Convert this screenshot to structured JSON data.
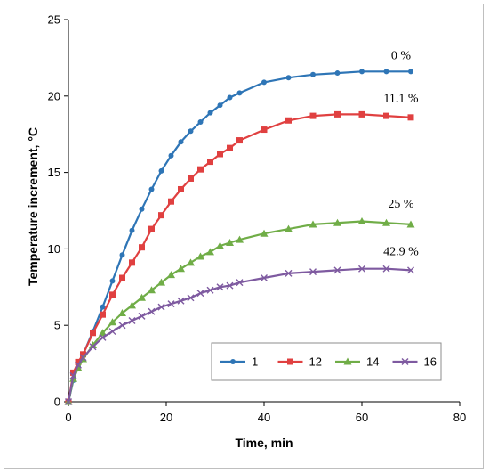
{
  "chart_data": {
    "type": "line",
    "xlabel": "Time, min",
    "ylabel": "Temperature increment, °C",
    "xlim": [
      0,
      80
    ],
    "ylim": [
      0,
      25
    ],
    "xticks": [
      "0",
      "20",
      "40",
      "60",
      "80"
    ],
    "yticks": [
      "0",
      "5",
      "10",
      "15",
      "20",
      "25"
    ],
    "grid": false,
    "legend_position": "bottom-right",
    "series": [
      {
        "name": "1",
        "color": "#2e75b6",
        "marker": "circle",
        "x": [
          0,
          1,
          2,
          3,
          5,
          7,
          9,
          11,
          13,
          15,
          17,
          19,
          21,
          23,
          25,
          27,
          29,
          31,
          33,
          35,
          40,
          45,
          50,
          55,
          60,
          65,
          70
        ],
        "y": [
          0,
          1.4,
          2.3,
          3.1,
          4.6,
          6.2,
          7.9,
          9.6,
          11.2,
          12.6,
          13.9,
          15.1,
          16.1,
          17.0,
          17.7,
          18.3,
          18.9,
          19.4,
          19.9,
          20.2,
          20.9,
          21.2,
          21.4,
          21.5,
          21.6,
          21.6,
          21.6
        ]
      },
      {
        "name": "12",
        "color": "#e04040",
        "marker": "square",
        "x": [
          0,
          1,
          2,
          3,
          5,
          7,
          9,
          11,
          13,
          15,
          17,
          19,
          21,
          23,
          25,
          27,
          29,
          31,
          33,
          35,
          40,
          45,
          50,
          55,
          60,
          65,
          70
        ],
        "y": [
          0,
          1.9,
          2.6,
          3.1,
          4.5,
          5.7,
          7.0,
          8.1,
          9.1,
          10.1,
          11.3,
          12.2,
          13.1,
          13.9,
          14.6,
          15.2,
          15.7,
          16.2,
          16.6,
          17.1,
          17.8,
          18.4,
          18.7,
          18.8,
          18.8,
          18.7,
          18.6
        ]
      },
      {
        "name": "14",
        "color": "#70ad47",
        "marker": "triangle",
        "x": [
          0,
          1,
          2,
          3,
          5,
          7,
          9,
          11,
          13,
          15,
          17,
          19,
          21,
          23,
          25,
          27,
          29,
          31,
          33,
          35,
          40,
          45,
          50,
          55,
          60,
          65,
          70
        ],
        "y": [
          0,
          1.5,
          2.2,
          2.8,
          3.7,
          4.5,
          5.2,
          5.8,
          6.3,
          6.8,
          7.3,
          7.8,
          8.3,
          8.7,
          9.1,
          9.5,
          9.8,
          10.2,
          10.4,
          10.6,
          11.0,
          11.3,
          11.6,
          11.7,
          11.8,
          11.7,
          11.6
        ]
      },
      {
        "name": "16",
        "color": "#7e5aa0",
        "marker": "x",
        "x": [
          0,
          1,
          2,
          3,
          5,
          7,
          9,
          11,
          13,
          15,
          17,
          19,
          21,
          23,
          25,
          27,
          29,
          31,
          33,
          35,
          40,
          45,
          50,
          55,
          60,
          65,
          70
        ],
        "y": [
          0,
          1.7,
          2.4,
          2.9,
          3.6,
          4.2,
          4.6,
          5.0,
          5.3,
          5.6,
          5.9,
          6.2,
          6.4,
          6.6,
          6.8,
          7.1,
          7.3,
          7.5,
          7.6,
          7.8,
          8.1,
          8.4,
          8.5,
          8.6,
          8.7,
          8.7,
          8.6
        ]
      }
    ],
    "annotations": [
      {
        "text": "0 %",
        "x": 68,
        "y": 22.4
      },
      {
        "text": "11.1 %",
        "x": 68,
        "y": 19.6
      },
      {
        "text": "25 %",
        "x": 68,
        "y": 12.7
      },
      {
        "text": "42.9 %",
        "x": 68,
        "y": 9.6
      }
    ]
  }
}
